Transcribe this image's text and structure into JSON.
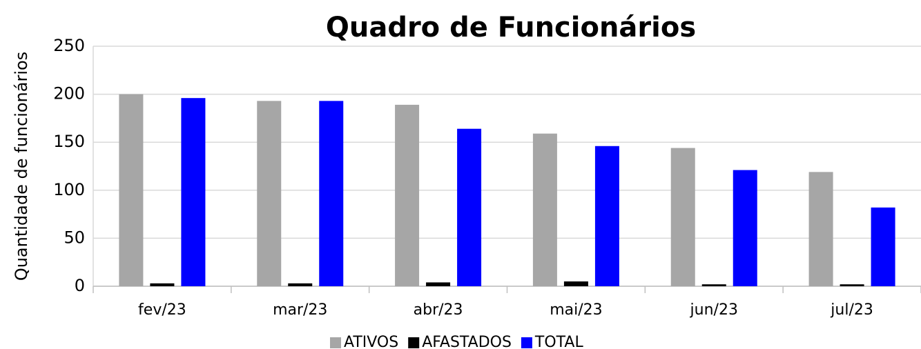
{
  "chart_data": {
    "type": "bar",
    "title": "Quadro de Funcionários",
    "y_label": "Quantidade de funcionários",
    "categories": [
      "fev/23",
      "mar/23",
      "abr/23",
      "mai/23",
      "jun/23",
      "jul/23"
    ],
    "series": [
      {
        "name": "ATIVOS",
        "color": "#a6a6a6",
        "values": [
          200,
          193,
          189,
          159,
          144,
          119
        ]
      },
      {
        "name": "AFASTADOS",
        "color": "#000000",
        "values": [
          3,
          3,
          4,
          5,
          2,
          2
        ]
      },
      {
        "name": "TOTAL",
        "color": "#0000ff",
        "values": [
          196,
          193,
          164,
          146,
          121,
          82
        ]
      }
    ],
    "ylim": [
      0,
      250
    ],
    "yticks": [
      0,
      50,
      100,
      150,
      200,
      250
    ],
    "grid": true,
    "legend": "bottom"
  }
}
